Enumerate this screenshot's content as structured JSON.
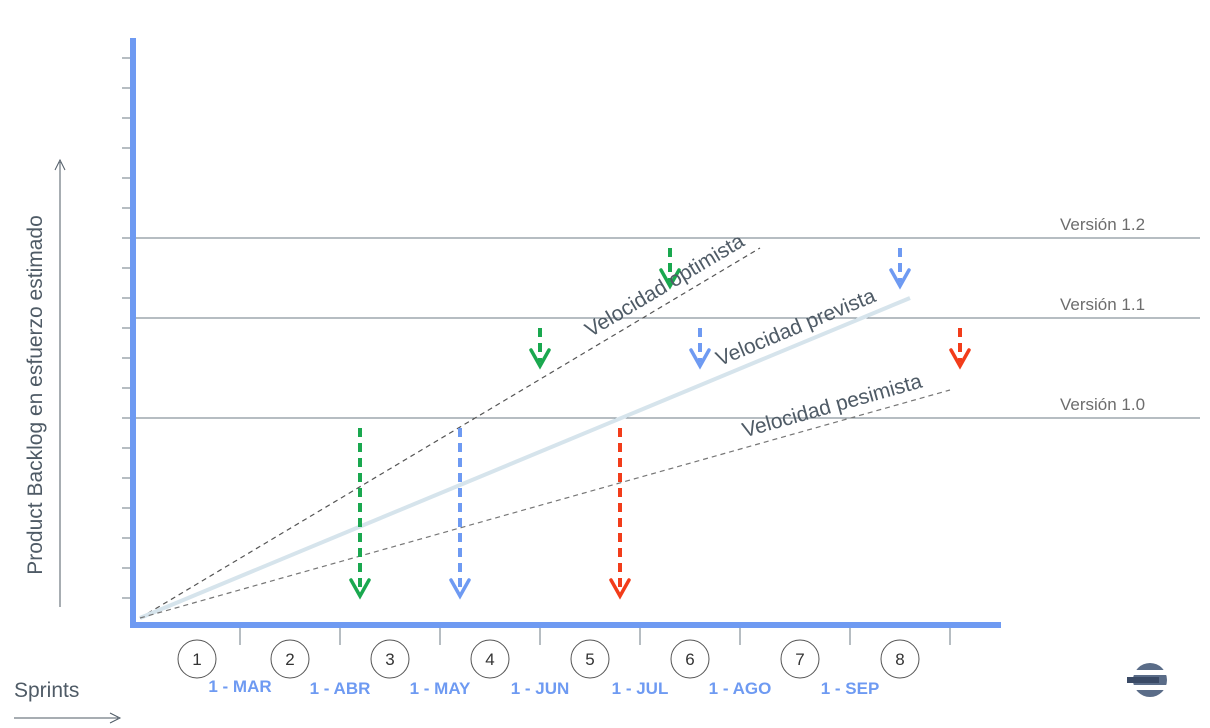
{
  "chart_data": {
    "type": "line",
    "ylabel": "Product Backlog en esfuerzo estimado",
    "xlabel": "Sprints",
    "sprints": [
      "1",
      "2",
      "3",
      "4",
      "5",
      "6",
      "7",
      "8"
    ],
    "dates": [
      "1 - MAR",
      "1 - ABR",
      "1 - MAY",
      "1 - JUN",
      "1 - JUL",
      "1 - AGO",
      "1 - SEP"
    ],
    "versions": [
      {
        "name": "Versión 1.0",
        "effort": 1.0
      },
      {
        "name": "Versión 1.1",
        "effort": 1.5
      },
      {
        "name": "Versión 1.2",
        "effort": 1.9
      }
    ],
    "series": [
      {
        "name": "Velocidad optimista",
        "style": "dashed",
        "color": "#555555",
        "x": [
          0,
          6.2
        ],
        "y": [
          0,
          1.85
        ],
        "arrows": [
          {
            "sprint": 2.2,
            "version": "Versión 1.0"
          },
          {
            "sprint": 4.0,
            "version": "Versión 1.1"
          },
          {
            "sprint": 5.3,
            "version": "Versión 1.2"
          }
        ],
        "arrow_color": "#1aa84f"
      },
      {
        "name": "Velocidad prevista",
        "style": "solid",
        "color": "#d6e4ec",
        "x": [
          0,
          7.7
        ],
        "y": [
          0,
          1.6
        ],
        "arrows": [
          {
            "sprint": 3.2,
            "version": "Versión 1.0"
          },
          {
            "sprint": 5.6,
            "version": "Versión 1.1"
          },
          {
            "sprint": 7.6,
            "version": "Versión 1.2"
          }
        ],
        "arrow_color": "#6e9af2"
      },
      {
        "name": "Velocidad pesimista",
        "style": "dashed",
        "color": "#777777",
        "x": [
          0,
          8.1
        ],
        "y": [
          0,
          1.14
        ],
        "arrows": [
          {
            "sprint": 4.8,
            "version": "Versión 1.0"
          },
          {
            "sprint": 8.2,
            "version": "Versión 1.1"
          }
        ],
        "arrow_color": "#f23c1a"
      }
    ],
    "colors": {
      "axis": "#6e9af2",
      "version_line": "#6d7b84",
      "tick": "#6d7b84"
    }
  }
}
